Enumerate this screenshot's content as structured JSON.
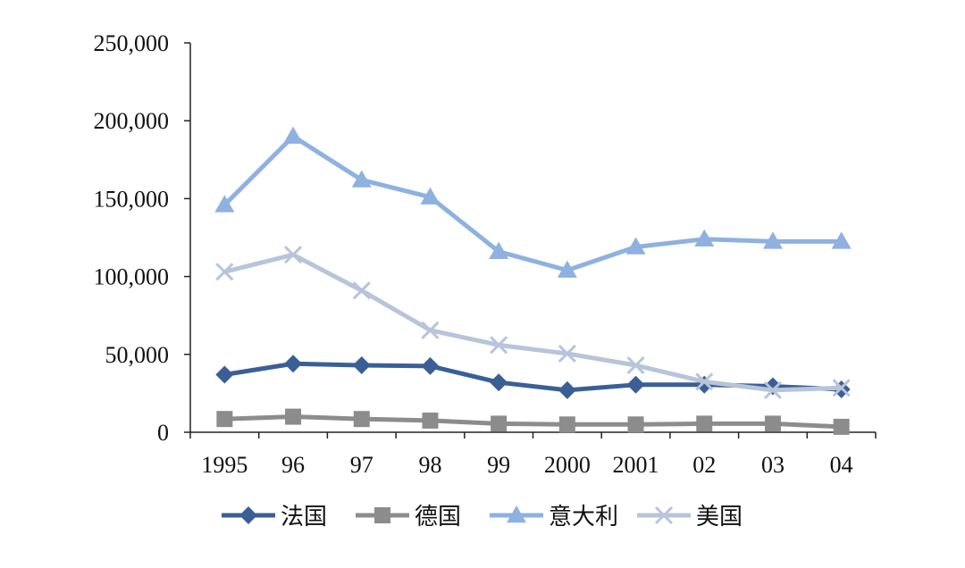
{
  "chart_data": {
    "type": "line",
    "title": "",
    "xlabel": "",
    "ylabel": "",
    "categories": [
      "1995",
      "96",
      "97",
      "98",
      "99",
      "2000",
      "2001",
      "02",
      "03",
      "04"
    ],
    "ylim": [
      0,
      250000
    ],
    "yticks": [
      0,
      50000,
      100000,
      150000,
      200000,
      250000
    ],
    "ytick_labels": [
      "0",
      "50,000",
      "100,000",
      "150,000",
      "200,000",
      "250,000"
    ],
    "grid": false,
    "legend_position": "bottom",
    "series": [
      {
        "name": "法国",
        "color": "#3a5f96",
        "marker": "diamond",
        "values": [
          37000,
          44000,
          43000,
          42500,
          32000,
          27000,
          30500,
          30500,
          29500,
          27500
        ]
      },
      {
        "name": "德国",
        "color": "#8c8c8c",
        "marker": "square",
        "values": [
          8500,
          10000,
          8500,
          7500,
          5500,
          5000,
          5000,
          5500,
          5500,
          3500
        ]
      },
      {
        "name": "意大利",
        "color": "#8eb1e0",
        "marker": "triangle",
        "values": [
          146000,
          190000,
          162000,
          151000,
          116000,
          104000,
          119000,
          124000,
          122500,
          122500
        ]
      },
      {
        "name": "美国",
        "color": "#b7c4da",
        "marker": "x",
        "values": [
          103000,
          114000,
          91000,
          65500,
          56000,
          50500,
          43000,
          32500,
          27000,
          28500
        ]
      }
    ]
  }
}
